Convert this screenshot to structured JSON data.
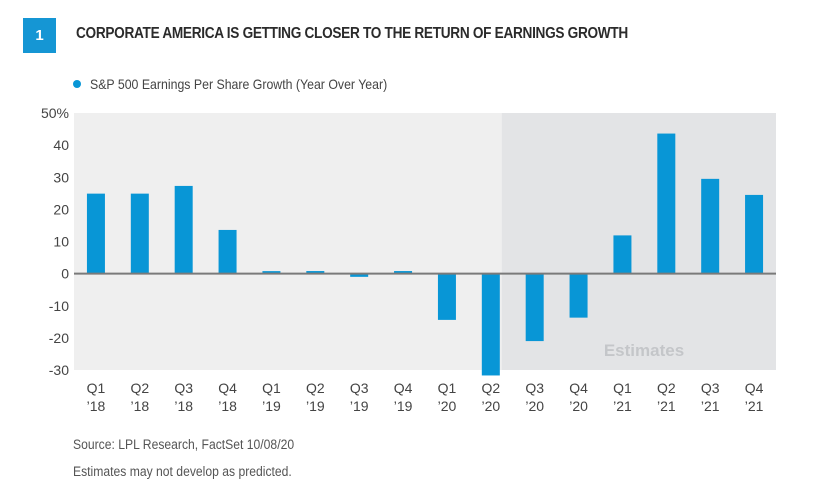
{
  "figure": {
    "number": "1",
    "title": "CORPORATE AMERICA IS GETTING CLOSER TO THE RETURN OF EARNINGS GROWTH",
    "source": "Source: LPL Research, FactSet  10/08/20",
    "note": "Estimates may not develop as predicted."
  },
  "colors": {
    "bar": "#0896d6",
    "badge": "#1596d4",
    "plot_background": "#efefef",
    "estimates_background": "#e3e4e6",
    "zero_line": "#7a7a7a"
  },
  "chart_data": {
    "type": "bar",
    "title": "CORPORATE AMERICA IS GETTING CLOSER TO THE RETURN OF EARNINGS GROWTH",
    "xlabel": "",
    "ylabel": "",
    "ylim": [
      -30,
      50
    ],
    "yticks": [
      50,
      40,
      30,
      20,
      10,
      0,
      -10,
      -20,
      -30
    ],
    "ytick_labels": [
      "50%",
      "40",
      "30",
      "20",
      "10",
      "0",
      "-10",
      "-20",
      "-30"
    ],
    "grid": false,
    "legend": {
      "position": "top-left",
      "entries": [
        "S&P 500 Earnings Per Share Growth (Year Over Year)"
      ]
    },
    "categories": [
      {
        "q": "Q1",
        "y": "’18"
      },
      {
        "q": "Q2",
        "y": "’18"
      },
      {
        "q": "Q3",
        "y": "’18"
      },
      {
        "q": "Q4",
        "y": "’18"
      },
      {
        "q": "Q1",
        "y": "’19"
      },
      {
        "q": "Q2",
        "y": "’19"
      },
      {
        "q": "Q3",
        "y": "’19"
      },
      {
        "q": "Q4",
        "y": "’19"
      },
      {
        "q": "Q1",
        "y": "’20"
      },
      {
        "q": "Q2",
        "y": "’20"
      },
      {
        "q": "Q3",
        "y": "’20"
      },
      {
        "q": "Q4",
        "y": "’20"
      },
      {
        "q": "Q1",
        "y": "’21"
      },
      {
        "q": "Q2",
        "y": "’21"
      },
      {
        "q": "Q3",
        "y": "’21"
      },
      {
        "q": "Q4",
        "y": "’21"
      }
    ],
    "series": [
      {
        "name": "S&P 500 Earnings Per Share Growth (Year Over Year)",
        "values": [
          24.9,
          24.9,
          27.3,
          13.6,
          0.2,
          0.8,
          -1.0,
          0.8,
          -14.4,
          -31.7,
          -21.0,
          -13.7,
          11.9,
          43.6,
          29.5,
          24.5
        ]
      }
    ],
    "annotations": [
      {
        "text": "Estimates",
        "region_start_category_index": 10,
        "region_end_category_index": 15
      }
    ]
  }
}
